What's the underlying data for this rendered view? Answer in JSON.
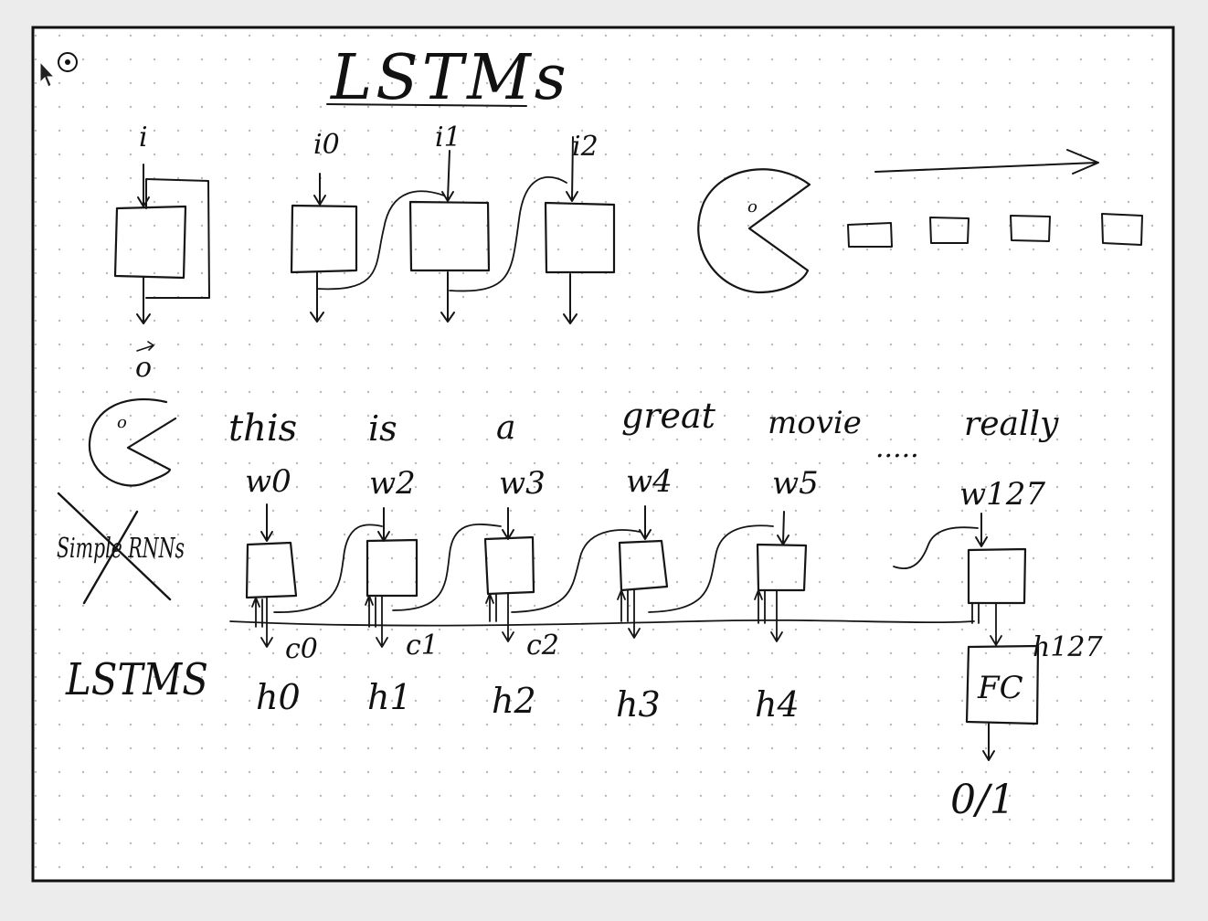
{
  "title": "LSTMs",
  "top_diagram": {
    "single_cell": {
      "input": "i",
      "output": "o"
    },
    "unrolled_inputs": [
      "i0",
      "i1",
      "i2"
    ]
  },
  "sentence_words": [
    "this",
    "is",
    "a",
    "great",
    "movie",
    "really"
  ],
  "ellipsis": ".....",
  "word_vectors": [
    "w0",
    "w2",
    "w3",
    "w4",
    "w5",
    "w127"
  ],
  "side_labels": {
    "struck": "Simple RNNs",
    "model": "LSTMS"
  },
  "cell_states": [
    "c0",
    "c1",
    "c2"
  ],
  "hidden_states": [
    "h0",
    "h1",
    "h2",
    "h3",
    "h4"
  ],
  "final_hidden": "h127",
  "fc_label": "FC",
  "output_label": "0/1",
  "colors": {
    "ink": "#151515",
    "paper": "#ffffff",
    "dots": "#b9b9b9",
    "background": "#ececec"
  }
}
